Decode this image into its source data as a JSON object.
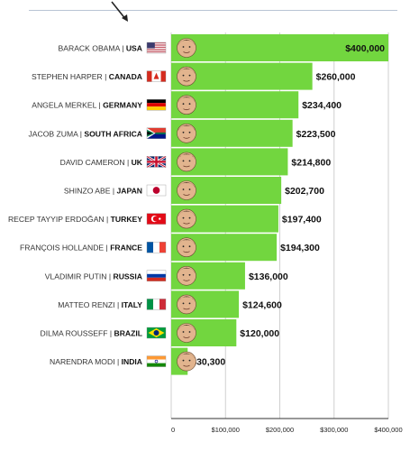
{
  "chart_data": {
    "type": "bar",
    "orientation": "horizontal",
    "title": "",
    "xlabel": "",
    "ylabel": "",
    "xlim": [
      0,
      400000
    ],
    "xticks": [
      {
        "value": 0,
        "label": "0"
      },
      {
        "value": 100000,
        "label": "$100,000"
      },
      {
        "value": 200000,
        "label": "$200,000"
      },
      {
        "value": 300000,
        "label": "$300,000"
      },
      {
        "value": 400000,
        "label": "$400,000"
      }
    ],
    "grid": true,
    "legend": "none",
    "bar_color": "#72d63f",
    "categories": [
      {
        "leader": "BARACK OBAMA",
        "country": "USA",
        "flag": "usa-flag-icon"
      },
      {
        "leader": "STEPHEN HARPER",
        "country": "CANADA",
        "flag": "canada-flag-icon"
      },
      {
        "leader": "ANGELA MERKEL",
        "country": "GERMANY",
        "flag": "germany-flag-icon"
      },
      {
        "leader": "JACOB ZUMA",
        "country": "SOUTH AFRICA",
        "flag": "south-africa-flag-icon"
      },
      {
        "leader": "DAVID CAMERON",
        "country": "UK",
        "flag": "uk-flag-icon"
      },
      {
        "leader": "SHINZO ABE",
        "country": "JAPAN",
        "flag": "japan-flag-icon"
      },
      {
        "leader": "RECEP TAYYIP ERDOĞAN",
        "country": "TURKEY",
        "flag": "turkey-flag-icon"
      },
      {
        "leader": "FRANÇOIS HOLLANDE",
        "country": "FRANCE",
        "flag": "france-flag-icon"
      },
      {
        "leader": "VLADIMIR PUTIN",
        "country": "RUSSIA",
        "flag": "russia-flag-icon"
      },
      {
        "leader": "MATTEO RENZI",
        "country": "ITALY",
        "flag": "italy-flag-icon"
      },
      {
        "leader": "DILMA ROUSSEFF",
        "country": "BRAZIL",
        "flag": "brazil-flag-icon"
      },
      {
        "leader": "NARENDRA MODI",
        "country": "INDIA",
        "flag": "india-flag-icon"
      }
    ],
    "values": [
      400000,
      260000,
      234400,
      223500,
      214800,
      202700,
      197400,
      194300,
      136000,
      124600,
      120000,
      30300
    ],
    "value_labels": [
      "$400,000",
      "$260,000",
      "$234,400",
      "$223,500",
      "$214,800",
      "$202,700",
      "$197,400",
      "$194,300",
      "$136,000",
      "$124,600",
      "$120,000",
      "$30,300"
    ]
  }
}
